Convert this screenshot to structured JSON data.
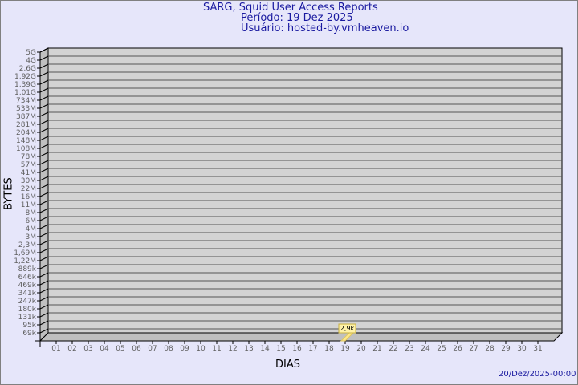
{
  "header": {
    "title": "SARG, Squid User Access Reports",
    "period": "Período: 19 Dez 2025",
    "user": "Usuário: hosted-by.vmheaven.io"
  },
  "footer": {
    "timestamp": "20/Dez/2025-00:00"
  },
  "colors": {
    "background": "#e6e6fa",
    "plot": "#d3d3d3",
    "title": "#1a1aa0",
    "bar": "#ffe88a"
  },
  "chart_data": {
    "type": "bar",
    "xlabel": "DIAS",
    "ylabel": "BYTES",
    "y_scale": "log",
    "y_ticks": [
      "5G",
      "4G",
      "2,6G",
      "1,92G",
      "1,39G",
      "1,01G",
      "734M",
      "533M",
      "387M",
      "281M",
      "204M",
      "148M",
      "108M",
      "78M",
      "57M",
      "41M",
      "30M",
      "22M",
      "16M",
      "11M",
      "8M",
      "6M",
      "4M",
      "3M",
      "2,3M",
      "1,69M",
      "1,22M",
      "889k",
      "646k",
      "469k",
      "341k",
      "247k",
      "180k",
      "131k",
      "95k",
      "69k"
    ],
    "categories": [
      "01",
      "02",
      "03",
      "04",
      "05",
      "06",
      "07",
      "08",
      "09",
      "10",
      "11",
      "12",
      "13",
      "14",
      "15",
      "16",
      "17",
      "18",
      "19",
      "20",
      "21",
      "22",
      "23",
      "24",
      "25",
      "26",
      "27",
      "28",
      "29",
      "30",
      "31"
    ],
    "bars": [
      {
        "day": "19",
        "value": 2900,
        "label": "2,9k"
      }
    ],
    "grid": true
  }
}
